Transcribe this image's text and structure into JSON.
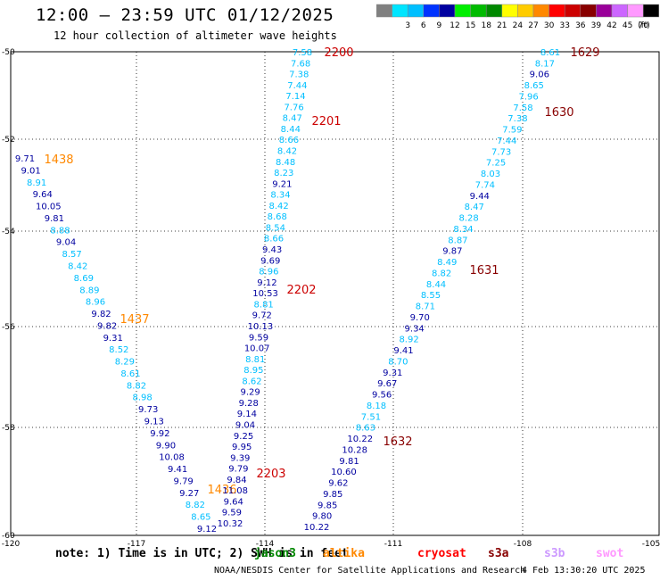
{
  "header": {
    "title": "12:00 — 23:59 UTC 01/12/2025",
    "subtitle": "12 hour collection of altimeter wave heights"
  },
  "legend": {
    "unit": "(ft)",
    "bins": [
      {
        "label": "",
        "color": "#808080"
      },
      {
        "label": "3",
        "color": "#00e5ff"
      },
      {
        "label": "6",
        "color": "#00bfff"
      },
      {
        "label": "9",
        "color": "#0033ff"
      },
      {
        "label": "12",
        "color": "#0000a0"
      },
      {
        "label": "15",
        "color": "#00ee00"
      },
      {
        "label": "18",
        "color": "#00bb00"
      },
      {
        "label": "21",
        "color": "#008800"
      },
      {
        "label": "24",
        "color": "#ffff00"
      },
      {
        "label": "27",
        "color": "#ffcc00"
      },
      {
        "label": "30",
        "color": "#ff8800"
      },
      {
        "label": "33",
        "color": "#ff0000"
      },
      {
        "label": "36",
        "color": "#cc0000"
      },
      {
        "label": "39",
        "color": "#880000"
      },
      {
        "label": "42",
        "color": "#990099"
      },
      {
        "label": "45",
        "color": "#cc66ff"
      },
      {
        "label": "70",
        "color": "#ff99ff"
      },
      {
        "label": "",
        "color": "#000000"
      }
    ]
  },
  "axes": {
    "lon_ticks": [
      "-120",
      "-117",
      "-114",
      "-111",
      "-108",
      "-105"
    ],
    "lat_ticks": [
      "-50",
      "-52",
      "-54",
      "-56",
      "-58",
      "-60"
    ]
  },
  "tracks": [
    {
      "points": [
        {
          "v": "9.71",
          "c": "#0000a0"
        },
        {
          "v": "9.01",
          "c": "#0000a0"
        },
        {
          "v": "8.91",
          "c": "#00bfff"
        },
        {
          "v": "9.64",
          "c": "#0000a0"
        },
        {
          "v": "10.05",
          "c": "#0000a0"
        },
        {
          "v": "9.81",
          "c": "#0000a0"
        },
        {
          "v": "8.88",
          "c": "#00bfff"
        },
        {
          "v": "9.04",
          "c": "#0000a0"
        },
        {
          "v": "8.57",
          "c": "#00bfff"
        },
        {
          "v": "8.42",
          "c": "#00bfff"
        },
        {
          "v": "8.69",
          "c": "#00bfff"
        },
        {
          "v": "8.89",
          "c": "#00bfff"
        },
        {
          "v": "8.96",
          "c": "#00bfff"
        },
        {
          "v": "9.82",
          "c": "#0000a0"
        },
        {
          "v": "9.82",
          "c": "#0000a0"
        },
        {
          "v": "9.31",
          "c": "#0000a0"
        },
        {
          "v": "8.52",
          "c": "#00bfff"
        },
        {
          "v": "8.29",
          "c": "#00bfff"
        },
        {
          "v": "8.61",
          "c": "#00bfff"
        },
        {
          "v": "8.82",
          "c": "#00bfff"
        },
        {
          "v": "8.98",
          "c": "#00bfff"
        },
        {
          "v": "9.73",
          "c": "#0000a0"
        },
        {
          "v": "9.13",
          "c": "#0000a0"
        },
        {
          "v": "9.92",
          "c": "#0000a0"
        },
        {
          "v": "9.90",
          "c": "#0000a0"
        },
        {
          "v": "10.08",
          "c": "#0000a0"
        },
        {
          "v": "9.41",
          "c": "#0000a0"
        },
        {
          "v": "9.79",
          "c": "#0000a0"
        },
        {
          "v": "9.27",
          "c": "#0000a0"
        },
        {
          "v": "8.82",
          "c": "#00bfff"
        },
        {
          "v": "8.65",
          "c": "#00bfff"
        },
        {
          "v": "9.12",
          "c": "#0000a0"
        }
      ],
      "time_labels": [
        {
          "t": "1438",
          "c": "#ff8800"
        },
        {
          "t": "1437",
          "c": "#ff8800"
        },
        {
          "t": "1436",
          "c": "#ff8800"
        }
      ]
    },
    {
      "points": [
        {
          "v": "7.58",
          "c": "#00bfff"
        },
        {
          "v": "7.68",
          "c": "#00bfff"
        },
        {
          "v": "7.38",
          "c": "#00bfff"
        },
        {
          "v": "7.44",
          "c": "#00bfff"
        },
        {
          "v": "7.14",
          "c": "#00bfff"
        },
        {
          "v": "7.76",
          "c": "#00bfff"
        },
        {
          "v": "8.47",
          "c": "#00bfff"
        },
        {
          "v": "8.44",
          "c": "#00bfff"
        },
        {
          "v": "8.66",
          "c": "#00bfff"
        },
        {
          "v": "8.42",
          "c": "#00bfff"
        },
        {
          "v": "8.48",
          "c": "#00bfff"
        },
        {
          "v": "8.23",
          "c": "#00bfff"
        },
        {
          "v": "9.21",
          "c": "#0000a0"
        },
        {
          "v": "8.34",
          "c": "#00bfff"
        },
        {
          "v": "8.42",
          "c": "#00bfff"
        },
        {
          "v": "8.68",
          "c": "#00bfff"
        },
        {
          "v": "8.54",
          "c": "#00bfff"
        },
        {
          "v": "8.66",
          "c": "#00bfff"
        },
        {
          "v": "9.43",
          "c": "#0000a0"
        },
        {
          "v": "9.69",
          "c": "#0000a0"
        },
        {
          "v": "8.96",
          "c": "#00bfff"
        },
        {
          "v": "9.12",
          "c": "#0000a0"
        },
        {
          "v": "10.53",
          "c": "#0000a0"
        },
        {
          "v": "8.81",
          "c": "#00bfff"
        },
        {
          "v": "9.72",
          "c": "#0000a0"
        },
        {
          "v": "10.13",
          "c": "#0000a0"
        },
        {
          "v": "9.59",
          "c": "#0000a0"
        },
        {
          "v": "10.07",
          "c": "#0000a0"
        },
        {
          "v": "8.81",
          "c": "#00bfff"
        },
        {
          "v": "8.95",
          "c": "#00bfff"
        },
        {
          "v": "8.62",
          "c": "#00bfff"
        },
        {
          "v": "9.29",
          "c": "#0000a0"
        },
        {
          "v": "9.28",
          "c": "#0000a0"
        },
        {
          "v": "9.14",
          "c": "#0000a0"
        },
        {
          "v": "9.04",
          "c": "#0000a0"
        },
        {
          "v": "9.25",
          "c": "#0000a0"
        },
        {
          "v": "9.95",
          "c": "#0000a0"
        },
        {
          "v": "9.39",
          "c": "#0000a0"
        },
        {
          "v": "9.79",
          "c": "#0000a0"
        },
        {
          "v": "9.84",
          "c": "#0000a0"
        },
        {
          "v": "11.08",
          "c": "#0000a0"
        },
        {
          "v": "9.64",
          "c": "#0000a0"
        },
        {
          "v": "9.59",
          "c": "#0000a0"
        },
        {
          "v": "10.32",
          "c": "#0000a0"
        }
      ],
      "time_labels": [
        {
          "t": "2200",
          "c": "#cc0000"
        },
        {
          "t": "2201",
          "c": "#cc0000"
        },
        {
          "t": "2202",
          "c": "#cc0000"
        },
        {
          "t": "2203",
          "c": "#cc0000"
        }
      ]
    },
    {
      "points": [
        {
          "v": "8.61",
          "c": "#00bfff"
        },
        {
          "v": "8.17",
          "c": "#00bfff"
        },
        {
          "v": "9.06",
          "c": "#0000a0"
        },
        {
          "v": "8.65",
          "c": "#00bfff"
        },
        {
          "v": "7.96",
          "c": "#00bfff"
        },
        {
          "v": "7.58",
          "c": "#00bfff"
        },
        {
          "v": "7.38",
          "c": "#00bfff"
        },
        {
          "v": "7.59",
          "c": "#00bfff"
        },
        {
          "v": "7.44",
          "c": "#00bfff"
        },
        {
          "v": "7.73",
          "c": "#00bfff"
        },
        {
          "v": "7.25",
          "c": "#00bfff"
        },
        {
          "v": "8.03",
          "c": "#00bfff"
        },
        {
          "v": "7.74",
          "c": "#00bfff"
        },
        {
          "v": "9.44",
          "c": "#0000a0"
        },
        {
          "v": "8.47",
          "c": "#00bfff"
        },
        {
          "v": "8.28",
          "c": "#00bfff"
        },
        {
          "v": "8.34",
          "c": "#00bfff"
        },
        {
          "v": "8.87",
          "c": "#00bfff"
        },
        {
          "v": "9.87",
          "c": "#0000a0"
        },
        {
          "v": "8.49",
          "c": "#00bfff"
        },
        {
          "v": "8.82",
          "c": "#00bfff"
        },
        {
          "v": "8.44",
          "c": "#00bfff"
        },
        {
          "v": "8.55",
          "c": "#00bfff"
        },
        {
          "v": "8.71",
          "c": "#00bfff"
        },
        {
          "v": "9.70",
          "c": "#0000a0"
        },
        {
          "v": "9.34",
          "c": "#0000a0"
        },
        {
          "v": "8.92",
          "c": "#00bfff"
        },
        {
          "v": "9.41",
          "c": "#0000a0"
        },
        {
          "v": "8.70",
          "c": "#00bfff"
        },
        {
          "v": "9.31",
          "c": "#0000a0"
        },
        {
          "v": "9.67",
          "c": "#0000a0"
        },
        {
          "v": "9.56",
          "c": "#0000a0"
        },
        {
          "v": "8.18",
          "c": "#00bfff"
        },
        {
          "v": "7.51",
          "c": "#00bfff"
        },
        {
          "v": "8.63",
          "c": "#00bfff"
        },
        {
          "v": "10.22",
          "c": "#0000a0"
        },
        {
          "v": "10.28",
          "c": "#0000a0"
        },
        {
          "v": "9.81",
          "c": "#0000a0"
        },
        {
          "v": "10.60",
          "c": "#0000a0"
        },
        {
          "v": "9.62",
          "c": "#0000a0"
        },
        {
          "v": "9.85",
          "c": "#0000a0"
        },
        {
          "v": "9.85",
          "c": "#0000a0"
        },
        {
          "v": "9.80",
          "c": "#0000a0"
        },
        {
          "v": "10.22",
          "c": "#0000a0"
        }
      ],
      "time_labels": [
        {
          "t": "1629",
          "c": "#880000"
        },
        {
          "t": "1630",
          "c": "#880000"
        },
        {
          "t": "1631",
          "c": "#880000"
        },
        {
          "t": "1632",
          "c": "#880000"
        }
      ]
    }
  ],
  "note": "note:  1) Time is in UTC; 2) SWH is in feet",
  "satellites": [
    {
      "name": "jason3",
      "color": "#008800"
    },
    {
      "name": "altika",
      "color": "#ff8800"
    },
    {
      "name": "cryosat",
      "color": "#ff0000"
    },
    {
      "name": "s3a",
      "color": "#880000"
    },
    {
      "name": "s3b",
      "color": "#cc99ff"
    },
    {
      "name": "swot",
      "color": "#ff99ff"
    }
  ],
  "footer": "NOAA/NESDIS Center for Satellite Applications and Research",
  "timestamp": "4 Feb 13:30:20 UTC 2025"
}
